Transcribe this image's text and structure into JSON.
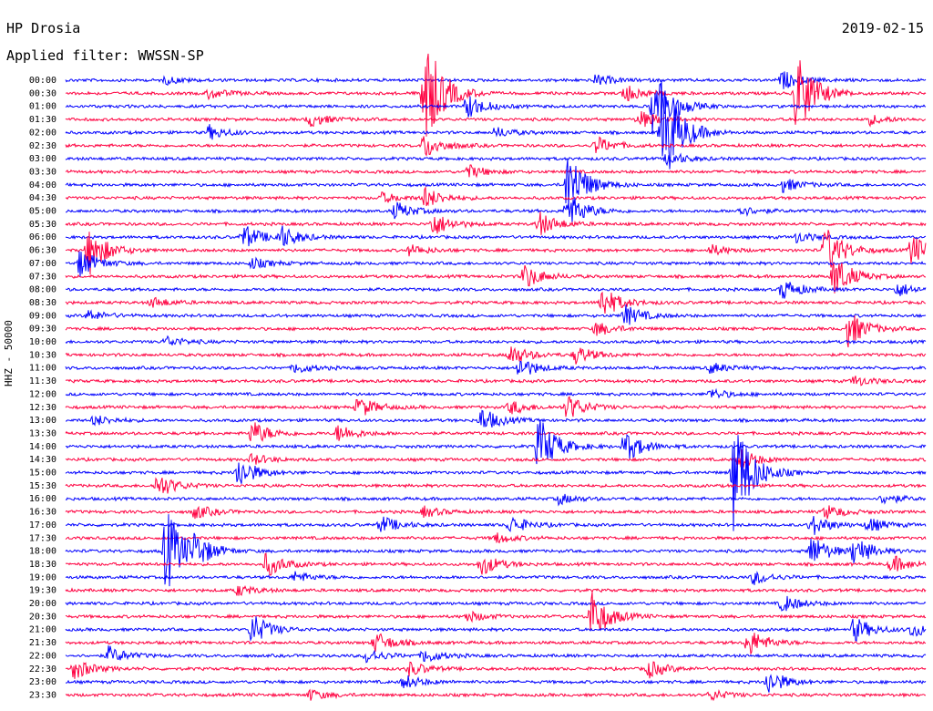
{
  "header": {
    "station": "HP Drosia",
    "date": "2019-02-15",
    "filter": "Applied filter: WWSSN-SP"
  },
  "colors": {
    "blue": "#0000ff",
    "red": "#ff0040"
  },
  "chart_data": {
    "type": "line",
    "title": "HP Drosia",
    "ylabel": "HHZ - 50000",
    "rows": [
      "00:00",
      "00:30",
      "01:00",
      "01:30",
      "02:00",
      "02:30",
      "03:00",
      "03:30",
      "04:00",
      "04:30",
      "05:00",
      "05:30",
      "06:00",
      "06:30",
      "07:00",
      "07:30",
      "08:00",
      "08:30",
      "09:00",
      "09:30",
      "10:00",
      "10:30",
      "11:00",
      "11:30",
      "12:00",
      "12:30",
      "13:00",
      "13:30",
      "14:00",
      "14:30",
      "15:00",
      "15:30",
      "16:00",
      "16:30",
      "17:00",
      "17:30",
      "18:00",
      "18:30",
      "19:00",
      "19:30",
      "20:00",
      "20:30",
      "21:00",
      "21:30",
      "22:00",
      "22:30",
      "23:00",
      "23:30"
    ],
    "row_colors": [
      "blue",
      "red"
    ],
    "x_unit": "minutes within 30-min row",
    "xlim": [
      0,
      30
    ],
    "events": [
      {
        "row": 0,
        "t": 3.5,
        "amp": 4
      },
      {
        "row": 0,
        "t": 18.5,
        "amp": 6
      },
      {
        "row": 0,
        "t": 25,
        "amp": 10
      },
      {
        "row": 1,
        "t": 5,
        "amp": 6
      },
      {
        "row": 1,
        "t": 12.5,
        "amp": 70
      },
      {
        "row": 1,
        "t": 19.5,
        "amp": 10
      },
      {
        "row": 1,
        "t": 25.5,
        "amp": 48
      },
      {
        "row": 2,
        "t": 14,
        "amp": 14
      },
      {
        "row": 2,
        "t": 20.5,
        "amp": 42
      },
      {
        "row": 3,
        "t": 8.5,
        "amp": 8
      },
      {
        "row": 3,
        "t": 20,
        "amp": 10
      },
      {
        "row": 3,
        "t": 28,
        "amp": 6
      },
      {
        "row": 4,
        "t": 5,
        "amp": 8
      },
      {
        "row": 4,
        "t": 20.8,
        "amp": 70
      },
      {
        "row": 4,
        "t": 15,
        "amp": 6
      },
      {
        "row": 5,
        "t": 12.5,
        "amp": 14
      },
      {
        "row": 5,
        "t": 18.5,
        "amp": 10
      },
      {
        "row": 6,
        "t": 21,
        "amp": 8
      },
      {
        "row": 7,
        "t": 14,
        "amp": 8
      },
      {
        "row": 8,
        "t": 17.5,
        "amp": 40
      },
      {
        "row": 8,
        "t": 25,
        "amp": 8
      },
      {
        "row": 9,
        "t": 12.5,
        "amp": 12
      },
      {
        "row": 9,
        "t": 11,
        "amp": 6
      },
      {
        "row": 10,
        "t": 11.5,
        "amp": 10
      },
      {
        "row": 10,
        "t": 17.5,
        "amp": 22
      },
      {
        "row": 10,
        "t": 23.5,
        "amp": 6
      },
      {
        "row": 11,
        "t": 12.8,
        "amp": 14
      },
      {
        "row": 11,
        "t": 16.5,
        "amp": 14
      },
      {
        "row": 12,
        "t": 6.2,
        "amp": 14
      },
      {
        "row": 12,
        "t": 7.5,
        "amp": 12
      },
      {
        "row": 12,
        "t": 25.5,
        "amp": 6
      },
      {
        "row": 13,
        "t": 0.8,
        "amp": 28
      },
      {
        "row": 13,
        "t": 12,
        "amp": 6
      },
      {
        "row": 13,
        "t": 22.5,
        "amp": 6
      },
      {
        "row": 13,
        "t": 26.5,
        "amp": 28
      },
      {
        "row": 13,
        "t": 29.5,
        "amp": 18
      },
      {
        "row": 14,
        "t": 0.5,
        "amp": 16
      },
      {
        "row": 14,
        "t": 6.5,
        "amp": 6
      },
      {
        "row": 15,
        "t": 16,
        "amp": 14
      },
      {
        "row": 15,
        "t": 26.8,
        "amp": 24
      },
      {
        "row": 16,
        "t": 25,
        "amp": 12
      },
      {
        "row": 16,
        "t": 29,
        "amp": 8
      },
      {
        "row": 17,
        "t": 18.7,
        "amp": 18
      },
      {
        "row": 17,
        "t": 3,
        "amp": 6
      },
      {
        "row": 18,
        "t": 0.8,
        "amp": 6
      },
      {
        "row": 18,
        "t": 19.5,
        "amp": 12
      },
      {
        "row": 19,
        "t": 27.3,
        "amp": 20
      },
      {
        "row": 19,
        "t": 18.5,
        "amp": 8
      },
      {
        "row": 20,
        "t": 3.5,
        "amp": 6
      },
      {
        "row": 21,
        "t": 15.5,
        "amp": 12
      },
      {
        "row": 21,
        "t": 17.8,
        "amp": 10
      },
      {
        "row": 22,
        "t": 8,
        "amp": 6
      },
      {
        "row": 22,
        "t": 15.8,
        "amp": 12
      },
      {
        "row": 22,
        "t": 22.5,
        "amp": 6
      },
      {
        "row": 23,
        "t": 27.5,
        "amp": 6
      },
      {
        "row": 24,
        "t": 22.5,
        "amp": 6
      },
      {
        "row": 25,
        "t": 10.2,
        "amp": 12
      },
      {
        "row": 25,
        "t": 15.5,
        "amp": 8
      },
      {
        "row": 25,
        "t": 17.5,
        "amp": 14
      },
      {
        "row": 26,
        "t": 1,
        "amp": 6
      },
      {
        "row": 26,
        "t": 14.5,
        "amp": 14
      },
      {
        "row": 27,
        "t": 6.5,
        "amp": 14
      },
      {
        "row": 27,
        "t": 9.5,
        "amp": 10
      },
      {
        "row": 28,
        "t": 16.5,
        "amp": 34
      },
      {
        "row": 28,
        "t": 19.5,
        "amp": 18
      },
      {
        "row": 29,
        "t": 6.5,
        "amp": 6
      },
      {
        "row": 29,
        "t": 23.5,
        "amp": 12
      },
      {
        "row": 30,
        "t": 6,
        "amp": 18
      },
      {
        "row": 30,
        "t": 23.3,
        "amp": 70
      },
      {
        "row": 31,
        "t": 3.2,
        "amp": 14
      },
      {
        "row": 32,
        "t": 17.2,
        "amp": 6
      },
      {
        "row": 32,
        "t": 28.5,
        "amp": 6
      },
      {
        "row": 33,
        "t": 4.5,
        "amp": 8
      },
      {
        "row": 33,
        "t": 12.5,
        "amp": 6
      },
      {
        "row": 33,
        "t": 26.5,
        "amp": 8
      },
      {
        "row": 34,
        "t": 11,
        "amp": 10
      },
      {
        "row": 34,
        "t": 15.5,
        "amp": 10
      },
      {
        "row": 34,
        "t": 26,
        "amp": 12
      },
      {
        "row": 34,
        "t": 28,
        "amp": 8
      },
      {
        "row": 35,
        "t": 15,
        "amp": 6
      },
      {
        "row": 36,
        "t": 3.5,
        "amp": 50
      },
      {
        "row": 36,
        "t": 4.5,
        "amp": 14
      },
      {
        "row": 36,
        "t": 26,
        "amp": 18
      },
      {
        "row": 36,
        "t": 27.5,
        "amp": 16
      },
      {
        "row": 37,
        "t": 7,
        "amp": 14
      },
      {
        "row": 37,
        "t": 14.5,
        "amp": 12
      },
      {
        "row": 37,
        "t": 28.8,
        "amp": 10
      },
      {
        "row": 38,
        "t": 8,
        "amp": 6
      },
      {
        "row": 38,
        "t": 24,
        "amp": 8
      },
      {
        "row": 39,
        "t": 6,
        "amp": 6
      },
      {
        "row": 40,
        "t": 25,
        "amp": 10
      },
      {
        "row": 41,
        "t": 18.3,
        "amp": 30
      },
      {
        "row": 41,
        "t": 14,
        "amp": 6
      },
      {
        "row": 42,
        "t": 6.5,
        "amp": 18
      },
      {
        "row": 42,
        "t": 27.5,
        "amp": 14
      },
      {
        "row": 42,
        "t": 29.5,
        "amp": 8
      },
      {
        "row": 43,
        "t": 10.8,
        "amp": 12
      },
      {
        "row": 43,
        "t": 23.8,
        "amp": 16
      },
      {
        "row": 44,
        "t": 1.5,
        "amp": 10
      },
      {
        "row": 44,
        "t": 10.5,
        "amp": 8
      },
      {
        "row": 44,
        "t": 12.5,
        "amp": 8
      },
      {
        "row": 45,
        "t": 0.3,
        "amp": 12
      },
      {
        "row": 45,
        "t": 12,
        "amp": 8
      },
      {
        "row": 45,
        "t": 20.3,
        "amp": 10
      },
      {
        "row": 46,
        "t": 11.8,
        "amp": 8
      },
      {
        "row": 46,
        "t": 24.5,
        "amp": 14
      },
      {
        "row": 47,
        "t": 8.5,
        "amp": 6
      },
      {
        "row": 47,
        "t": 22.5,
        "amp": 6
      }
    ]
  }
}
